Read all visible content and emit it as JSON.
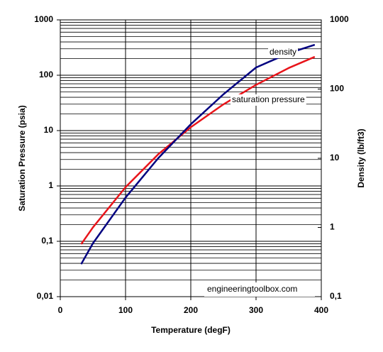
{
  "chart_data": {
    "type": "line",
    "x_label": "Temperature (degF)",
    "y_label": "Saturation Pressure (psia)",
    "y2_label": "Density (lb/ft3)",
    "annotations": [
      "density",
      "saturation pressure",
      "engineeringtoolbox.com"
    ],
    "x": [
      32,
      50,
      100,
      150,
      200,
      250,
      300,
      350,
      390
    ],
    "series": [
      {
        "name": "saturation pressure",
        "color": "#e8141a",
        "values": [
          0.0887,
          0.178,
          0.95,
          3.72,
          11.5,
          29.8,
          67,
          135,
          215
        ]
      },
      {
        "name": "density",
        "color": "#000080",
        "axis": "y2",
        "values": [
          0.295,
          0.59,
          2.7,
          10,
          31,
          84,
          205,
          330,
          437
        ]
      }
    ],
    "xlim": [
      0,
      400
    ],
    "xticks": [
      0,
      100,
      200,
      300,
      400
    ],
    "ylim": [
      0.01,
      1000
    ],
    "ylog": true,
    "yticks": [
      {
        "value": 0.01,
        "label": "0,01"
      },
      {
        "value": 0.1,
        "label": "0,1"
      },
      1,
      10,
      100,
      1000
    ],
    "y2lim": [
      0.1,
      1000
    ],
    "y2log": true,
    "y2ticks": [
      {
        "value": 0.1,
        "label": "0,1"
      },
      1,
      10,
      100,
      1000
    ],
    "grid": true
  }
}
